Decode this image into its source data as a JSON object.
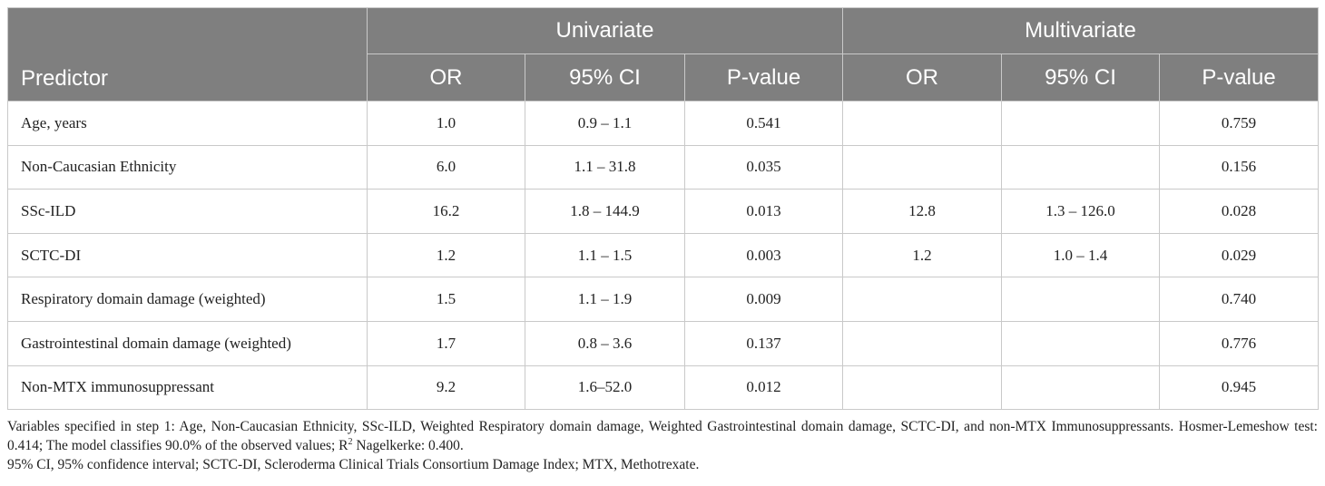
{
  "table": {
    "group_headers": {
      "univariate": "Univariate",
      "multivariate": "Multivariate"
    },
    "columns": {
      "predictor": "Predictor",
      "uni_or": "OR",
      "uni_ci": "95% CI",
      "uni_p": "P-value",
      "multi_or": "OR",
      "multi_ci": "95% CI",
      "multi_p": "P-value"
    },
    "rows": [
      {
        "predictor": "Age, years",
        "uni_or": "1.0",
        "uni_ci": "0.9 – 1.1",
        "uni_p": "0.541",
        "multi_or": "",
        "multi_ci": "",
        "multi_p": "0.759"
      },
      {
        "predictor": "Non-Caucasian Ethnicity",
        "uni_or": "6.0",
        "uni_ci": "1.1 – 31.8",
        "uni_p": "0.035",
        "multi_or": "",
        "multi_ci": "",
        "multi_p": "0.156"
      },
      {
        "predictor": "SSc-ILD",
        "uni_or": "16.2",
        "uni_ci": "1.8 – 144.9",
        "uni_p": "0.013",
        "multi_or": "12.8",
        "multi_ci": "1.3 – 126.0",
        "multi_p": "0.028"
      },
      {
        "predictor": "SCTC-DI",
        "uni_or": "1.2",
        "uni_ci": "1.1 – 1.5",
        "uni_p": "0.003",
        "multi_or": "1.2",
        "multi_ci": "1.0 – 1.4",
        "multi_p": "0.029"
      },
      {
        "predictor": "Respiratory domain damage (weighted)",
        "uni_or": "1.5",
        "uni_ci": "1.1 – 1.9",
        "uni_p": "0.009",
        "multi_or": "",
        "multi_ci": "",
        "multi_p": "0.740"
      },
      {
        "predictor": "Gastrointestinal domain damage (weighted)",
        "uni_or": "1.7",
        "uni_ci": "0.8 – 3.6",
        "uni_p": "0.137",
        "multi_or": "",
        "multi_ci": "",
        "multi_p": "0.776"
      },
      {
        "predictor": "Non-MTX immunosuppressant",
        "uni_or": "9.2",
        "uni_ci": "1.6–52.0",
        "uni_p": "0.012",
        "multi_or": "",
        "multi_ci": "",
        "multi_p": "0.945"
      }
    ]
  },
  "notes": {
    "line1_before_sup": "Variables specified in step 1: Age, Non-Caucasian Ethnicity, SSc-ILD, Weighted Respiratory domain damage, Weighted Gastrointestinal domain damage, SCTC-DI, and non-MTX Immunosuppressants. Hosmer-Lemeshow test: 0.414; The model classifies 90.0% of the observed values; R",
    "sup": "2",
    "line1_after_sup": " Nagelkerke: 0.400.",
    "line2": "95% CI, 95% confidence interval; SCTC-DI, Scleroderma Clinical Trials Consortium Damage Index; MTX, Methotrexate."
  }
}
